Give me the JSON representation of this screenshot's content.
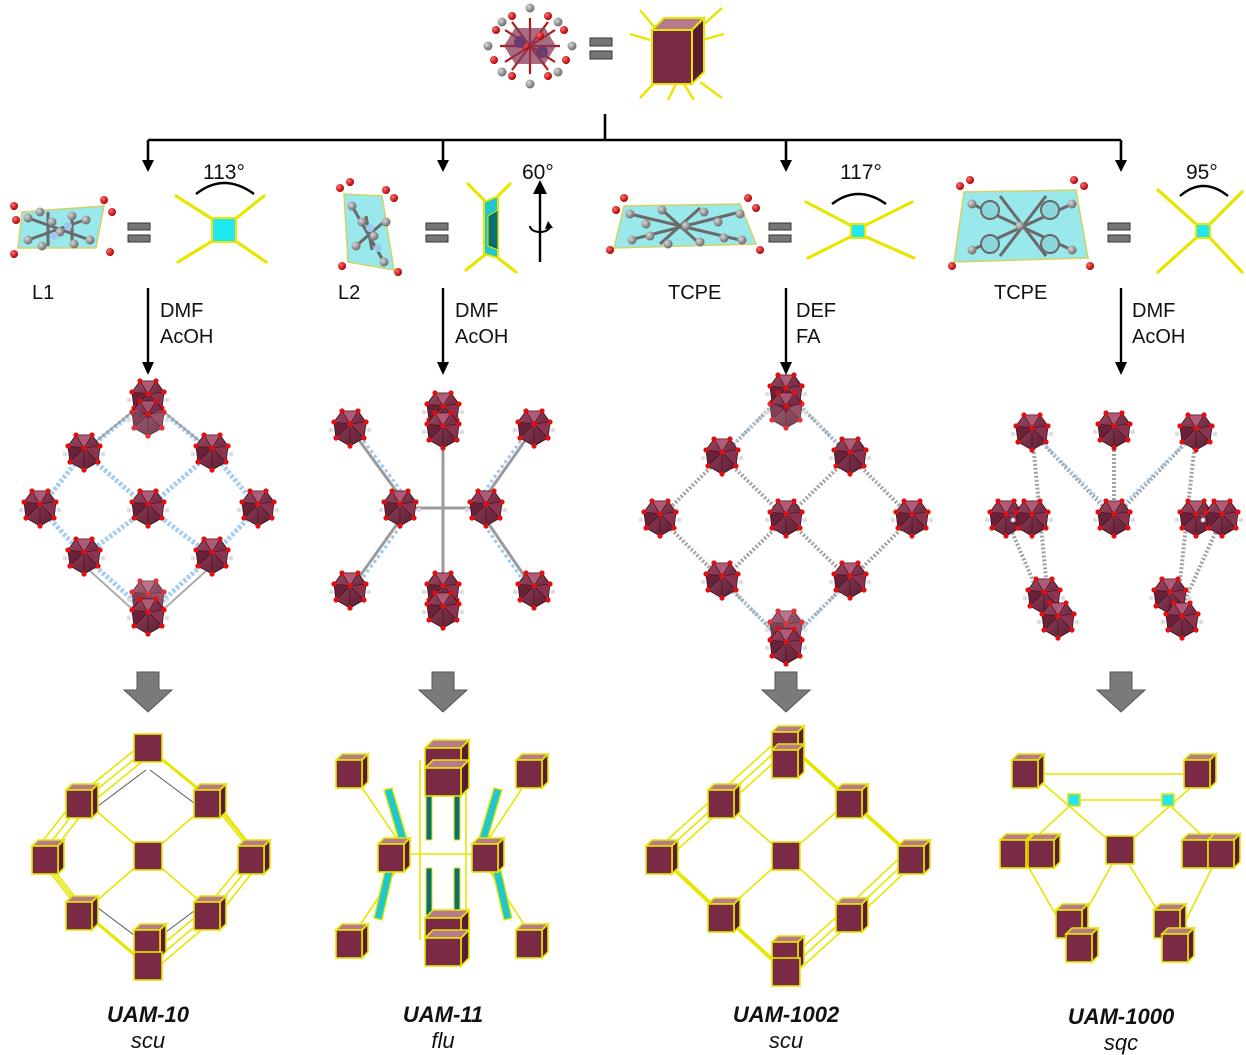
{
  "columns": [
    {
      "linker": "L1",
      "angle": "113°",
      "solvent1": "DMF",
      "solvent2": "AcOH",
      "mof": "UAM-10",
      "topology": "scu"
    },
    {
      "linker": "L2",
      "angle": "60°",
      "solvent1": "DMF",
      "solvent2": "AcOH",
      "mof": "UAM-11",
      "topology": "flu"
    },
    {
      "linker": "TCPE",
      "angle": "117°",
      "solvent1": "DEF",
      "solvent2": "FA",
      "mof": "UAM-1002",
      "topology": "scu"
    },
    {
      "linker": "TCPE",
      "angle": "95°",
      "solvent1": "DMF",
      "solvent2": "AcOH",
      "mof": "UAM-1000",
      "topology": "sqc"
    }
  ],
  "colors": {
    "cluster": "#7a2a44",
    "oxygen": "#e01010",
    "carbon": "#8a8a8a",
    "nitrogen": "#9cc8ee",
    "linker_plane": "#7fe3e8",
    "node_edge": "#e6e600",
    "arrow_gray": "#7a7a7a"
  }
}
